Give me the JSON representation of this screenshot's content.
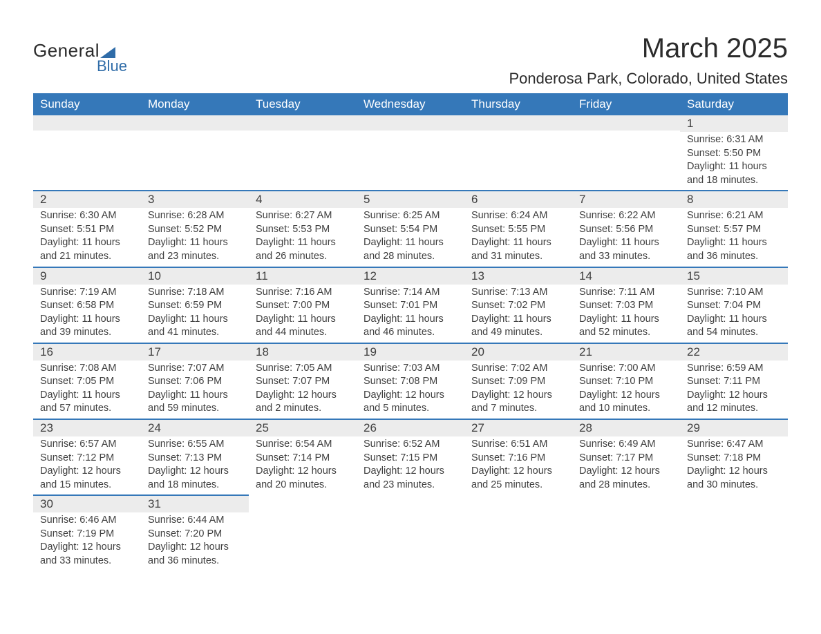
{
  "logo": {
    "text1": "General",
    "text2": "Blue"
  },
  "header": {
    "month_title": "March 2025",
    "location": "Ponderosa Park, Colorado, United States"
  },
  "calendar": {
    "colors": {
      "header_bg": "#3578b9",
      "header_text": "#ffffff",
      "daynum_bg": "#ececec",
      "row_border": "#3578b9",
      "text": "#404040",
      "page_bg": "#ffffff",
      "logo_accent": "#2f6ca8"
    },
    "fonts": {
      "month_title_pt": 40,
      "location_pt": 22,
      "header_pt": 17,
      "daynum_pt": 17,
      "body_pt": 14.5
    },
    "weekdays": [
      "Sunday",
      "Monday",
      "Tuesday",
      "Wednesday",
      "Thursday",
      "Friday",
      "Saturday"
    ],
    "weeks": [
      [
        {
          "blank": true
        },
        {
          "blank": true
        },
        {
          "blank": true
        },
        {
          "blank": true
        },
        {
          "blank": true
        },
        {
          "blank": true
        },
        {
          "day": "1",
          "sunrise": "Sunrise: 6:31 AM",
          "sunset": "Sunset: 5:50 PM",
          "dl1": "Daylight: 11 hours",
          "dl2": "and 18 minutes."
        }
      ],
      [
        {
          "day": "2",
          "sunrise": "Sunrise: 6:30 AM",
          "sunset": "Sunset: 5:51 PM",
          "dl1": "Daylight: 11 hours",
          "dl2": "and 21 minutes."
        },
        {
          "day": "3",
          "sunrise": "Sunrise: 6:28 AM",
          "sunset": "Sunset: 5:52 PM",
          "dl1": "Daylight: 11 hours",
          "dl2": "and 23 minutes."
        },
        {
          "day": "4",
          "sunrise": "Sunrise: 6:27 AM",
          "sunset": "Sunset: 5:53 PM",
          "dl1": "Daylight: 11 hours",
          "dl2": "and 26 minutes."
        },
        {
          "day": "5",
          "sunrise": "Sunrise: 6:25 AM",
          "sunset": "Sunset: 5:54 PM",
          "dl1": "Daylight: 11 hours",
          "dl2": "and 28 minutes."
        },
        {
          "day": "6",
          "sunrise": "Sunrise: 6:24 AM",
          "sunset": "Sunset: 5:55 PM",
          "dl1": "Daylight: 11 hours",
          "dl2": "and 31 minutes."
        },
        {
          "day": "7",
          "sunrise": "Sunrise: 6:22 AM",
          "sunset": "Sunset: 5:56 PM",
          "dl1": "Daylight: 11 hours",
          "dl2": "and 33 minutes."
        },
        {
          "day": "8",
          "sunrise": "Sunrise: 6:21 AM",
          "sunset": "Sunset: 5:57 PM",
          "dl1": "Daylight: 11 hours",
          "dl2": "and 36 minutes."
        }
      ],
      [
        {
          "day": "9",
          "sunrise": "Sunrise: 7:19 AM",
          "sunset": "Sunset: 6:58 PM",
          "dl1": "Daylight: 11 hours",
          "dl2": "and 39 minutes."
        },
        {
          "day": "10",
          "sunrise": "Sunrise: 7:18 AM",
          "sunset": "Sunset: 6:59 PM",
          "dl1": "Daylight: 11 hours",
          "dl2": "and 41 minutes."
        },
        {
          "day": "11",
          "sunrise": "Sunrise: 7:16 AM",
          "sunset": "Sunset: 7:00 PM",
          "dl1": "Daylight: 11 hours",
          "dl2": "and 44 minutes."
        },
        {
          "day": "12",
          "sunrise": "Sunrise: 7:14 AM",
          "sunset": "Sunset: 7:01 PM",
          "dl1": "Daylight: 11 hours",
          "dl2": "and 46 minutes."
        },
        {
          "day": "13",
          "sunrise": "Sunrise: 7:13 AM",
          "sunset": "Sunset: 7:02 PM",
          "dl1": "Daylight: 11 hours",
          "dl2": "and 49 minutes."
        },
        {
          "day": "14",
          "sunrise": "Sunrise: 7:11 AM",
          "sunset": "Sunset: 7:03 PM",
          "dl1": "Daylight: 11 hours",
          "dl2": "and 52 minutes."
        },
        {
          "day": "15",
          "sunrise": "Sunrise: 7:10 AM",
          "sunset": "Sunset: 7:04 PM",
          "dl1": "Daylight: 11 hours",
          "dl2": "and 54 minutes."
        }
      ],
      [
        {
          "day": "16",
          "sunrise": "Sunrise: 7:08 AM",
          "sunset": "Sunset: 7:05 PM",
          "dl1": "Daylight: 11 hours",
          "dl2": "and 57 minutes."
        },
        {
          "day": "17",
          "sunrise": "Sunrise: 7:07 AM",
          "sunset": "Sunset: 7:06 PM",
          "dl1": "Daylight: 11 hours",
          "dl2": "and 59 minutes."
        },
        {
          "day": "18",
          "sunrise": "Sunrise: 7:05 AM",
          "sunset": "Sunset: 7:07 PM",
          "dl1": "Daylight: 12 hours",
          "dl2": "and 2 minutes."
        },
        {
          "day": "19",
          "sunrise": "Sunrise: 7:03 AM",
          "sunset": "Sunset: 7:08 PM",
          "dl1": "Daylight: 12 hours",
          "dl2": "and 5 minutes."
        },
        {
          "day": "20",
          "sunrise": "Sunrise: 7:02 AM",
          "sunset": "Sunset: 7:09 PM",
          "dl1": "Daylight: 12 hours",
          "dl2": "and 7 minutes."
        },
        {
          "day": "21",
          "sunrise": "Sunrise: 7:00 AM",
          "sunset": "Sunset: 7:10 PM",
          "dl1": "Daylight: 12 hours",
          "dl2": "and 10 minutes."
        },
        {
          "day": "22",
          "sunrise": "Sunrise: 6:59 AM",
          "sunset": "Sunset: 7:11 PM",
          "dl1": "Daylight: 12 hours",
          "dl2": "and 12 minutes."
        }
      ],
      [
        {
          "day": "23",
          "sunrise": "Sunrise: 6:57 AM",
          "sunset": "Sunset: 7:12 PM",
          "dl1": "Daylight: 12 hours",
          "dl2": "and 15 minutes."
        },
        {
          "day": "24",
          "sunrise": "Sunrise: 6:55 AM",
          "sunset": "Sunset: 7:13 PM",
          "dl1": "Daylight: 12 hours",
          "dl2": "and 18 minutes."
        },
        {
          "day": "25",
          "sunrise": "Sunrise: 6:54 AM",
          "sunset": "Sunset: 7:14 PM",
          "dl1": "Daylight: 12 hours",
          "dl2": "and 20 minutes."
        },
        {
          "day": "26",
          "sunrise": "Sunrise: 6:52 AM",
          "sunset": "Sunset: 7:15 PM",
          "dl1": "Daylight: 12 hours",
          "dl2": "and 23 minutes."
        },
        {
          "day": "27",
          "sunrise": "Sunrise: 6:51 AM",
          "sunset": "Sunset: 7:16 PM",
          "dl1": "Daylight: 12 hours",
          "dl2": "and 25 minutes."
        },
        {
          "day": "28",
          "sunrise": "Sunrise: 6:49 AM",
          "sunset": "Sunset: 7:17 PM",
          "dl1": "Daylight: 12 hours",
          "dl2": "and 28 minutes."
        },
        {
          "day": "29",
          "sunrise": "Sunrise: 6:47 AM",
          "sunset": "Sunset: 7:18 PM",
          "dl1": "Daylight: 12 hours",
          "dl2": "and 30 minutes."
        }
      ],
      [
        {
          "day": "30",
          "sunrise": "Sunrise: 6:46 AM",
          "sunset": "Sunset: 7:19 PM",
          "dl1": "Daylight: 12 hours",
          "dl2": "and 33 minutes."
        },
        {
          "day": "31",
          "sunrise": "Sunrise: 6:44 AM",
          "sunset": "Sunset: 7:20 PM",
          "dl1": "Daylight: 12 hours",
          "dl2": "and 36 minutes."
        },
        {
          "blank": true
        },
        {
          "blank": true
        },
        {
          "blank": true
        },
        {
          "blank": true
        },
        {
          "blank": true
        }
      ]
    ]
  }
}
